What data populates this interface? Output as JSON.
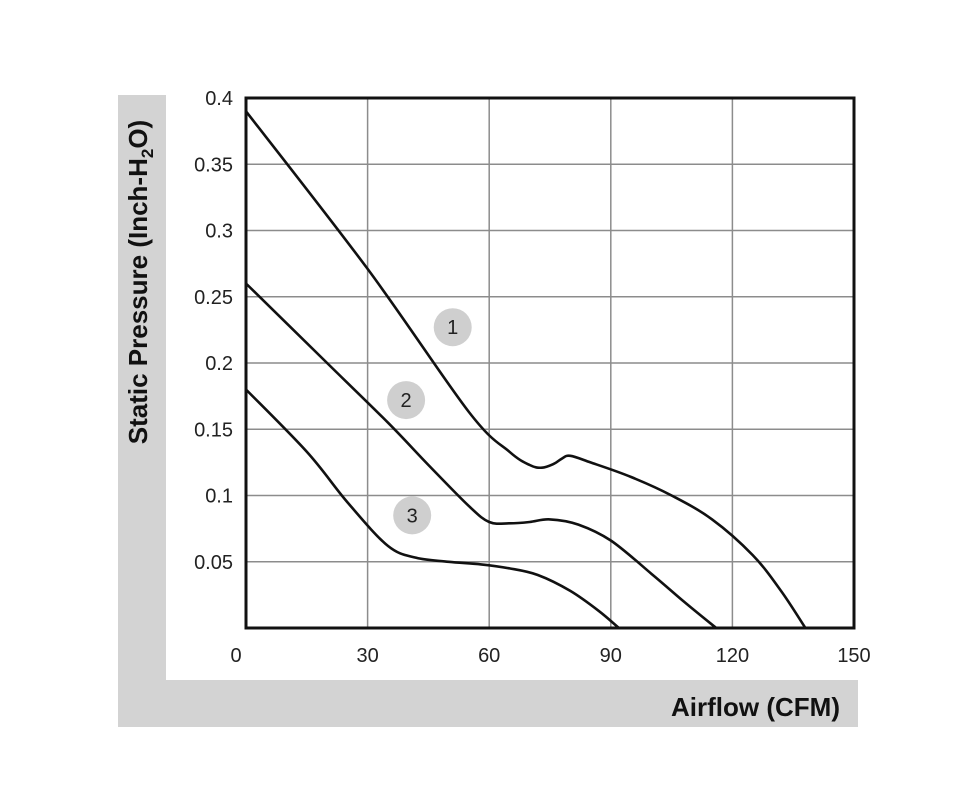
{
  "chart_data": {
    "type": "line",
    "xlabel": "Airflow (CFM)",
    "ylabel_main": "Static Pressure (Inch-H",
    "ylabel_sub": "2",
    "ylabel_end": "O)",
    "xlim": [
      0,
      150
    ],
    "ylim": [
      0,
      0.4
    ],
    "x_ticks": [
      "0",
      "30",
      "60",
      "90",
      "120",
      "150"
    ],
    "y_ticks": [
      "0.05",
      "0.1",
      "0.15",
      "0.2",
      "0.25",
      "0.3",
      "0.35",
      "0.4"
    ],
    "grid": true,
    "colors": {
      "line": "#111111",
      "band": "#d3d3d3",
      "marker": "#cfcfcf",
      "grid": "#8c8c8c"
    },
    "series": [
      {
        "name": "1",
        "points": [
          [
            0,
            0.39
          ],
          [
            30,
            0.271
          ],
          [
            55,
            0.163
          ],
          [
            65,
            0.133
          ],
          [
            70,
            0.123
          ],
          [
            73,
            0.121
          ],
          [
            76,
            0.124
          ],
          [
            78,
            0.128
          ],
          [
            80,
            0.13
          ],
          [
            85,
            0.125
          ],
          [
            95,
            0.114
          ],
          [
            105,
            0.1
          ],
          [
            115,
            0.082
          ],
          [
            125,
            0.055
          ],
          [
            132,
            0.028
          ],
          [
            138,
            0.0
          ]
        ]
      },
      {
        "name": "2",
        "points": [
          [
            0,
            0.26
          ],
          [
            20,
            0.2
          ],
          [
            35,
            0.155
          ],
          [
            45,
            0.123
          ],
          [
            55,
            0.092
          ],
          [
            60,
            0.08
          ],
          [
            65,
            0.079
          ],
          [
            70,
            0.08
          ],
          [
            75,
            0.082
          ],
          [
            82,
            0.078
          ],
          [
            90,
            0.066
          ],
          [
            100,
            0.041
          ],
          [
            108,
            0.02
          ],
          [
            116,
            0.0
          ]
        ]
      },
      {
        "name": "3",
        "points": [
          [
            0,
            0.18
          ],
          [
            15,
            0.133
          ],
          [
            25,
            0.095
          ],
          [
            35,
            0.062
          ],
          [
            42,
            0.053
          ],
          [
            50,
            0.05
          ],
          [
            58,
            0.048
          ],
          [
            65,
            0.045
          ],
          [
            72,
            0.04
          ],
          [
            80,
            0.028
          ],
          [
            87,
            0.013
          ],
          [
            92,
            0.0
          ]
        ]
      }
    ],
    "annotations": [
      {
        "label": "1",
        "x": 51,
        "y": 0.227
      },
      {
        "label": "2",
        "x": 39.5,
        "y": 0.172
      },
      {
        "label": "3",
        "x": 41,
        "y": 0.085
      }
    ]
  }
}
